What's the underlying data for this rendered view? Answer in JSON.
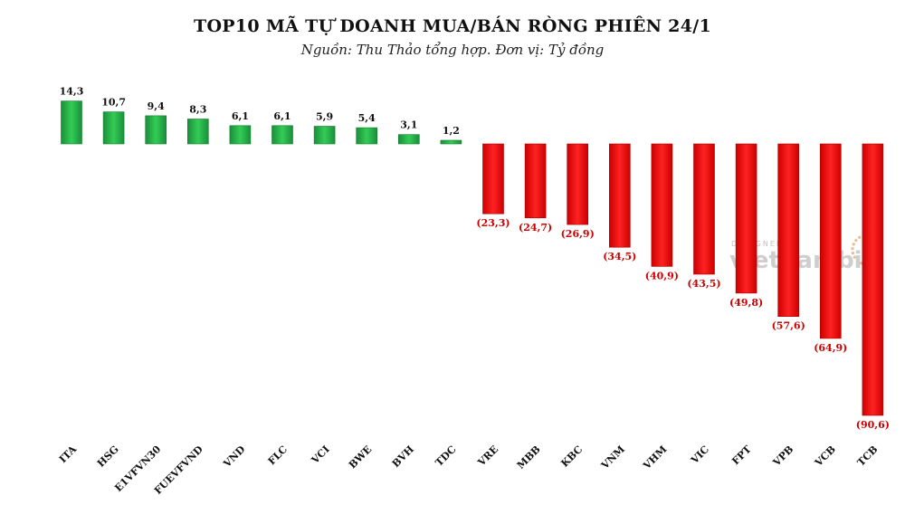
{
  "chart_data": {
    "type": "bar",
    "title": "TOP10 MÃ TỰ DOANH MUA/BÁN RÒNG PHIÊN 24/1",
    "subtitle": "Nguồn: Thu Thảo tổng hợp. Đơn vị: Tỷ đồng",
    "categories": [
      "ITA",
      "HSG",
      "E1VFVN30",
      "FUEVFVND",
      "VND",
      "FLC",
      "VCI",
      "BWE",
      "BVH",
      "TDC",
      "VRE",
      "MBB",
      "KBC",
      "VNM",
      "VHM",
      "VIC",
      "FPT",
      "VPB",
      "VCB",
      "TCB"
    ],
    "values": [
      14.3,
      10.7,
      9.4,
      8.3,
      6.1,
      6.1,
      5.9,
      5.4,
      3.1,
      1.2,
      -23.3,
      -24.7,
      -26.9,
      -34.5,
      -40.9,
      -43.5,
      -49.8,
      -57.6,
      -64.9,
      -90.6
    ],
    "value_labels": [
      "14,3",
      "10,7",
      "9,4",
      "8,3",
      "6,1",
      "6,1",
      "5,9",
      "5,4",
      "3,1",
      "1,2",
      "(23,3)",
      "(24,7)",
      "(26,9)",
      "(34,5)",
      "(40,9)",
      "(43,5)",
      "(49,8)",
      "(57,6)",
      "(64,9)",
      "(90,6)"
    ],
    "xlabel": "",
    "ylabel": "",
    "ylim": [
      -90.6,
      14.3
    ],
    "grid": false,
    "colors": {
      "positive": "#22aa44",
      "negative": "#ee1111"
    }
  },
  "watermark": {
    "line1": "DESIGNED BY",
    "line2": "vietnambiz"
  }
}
